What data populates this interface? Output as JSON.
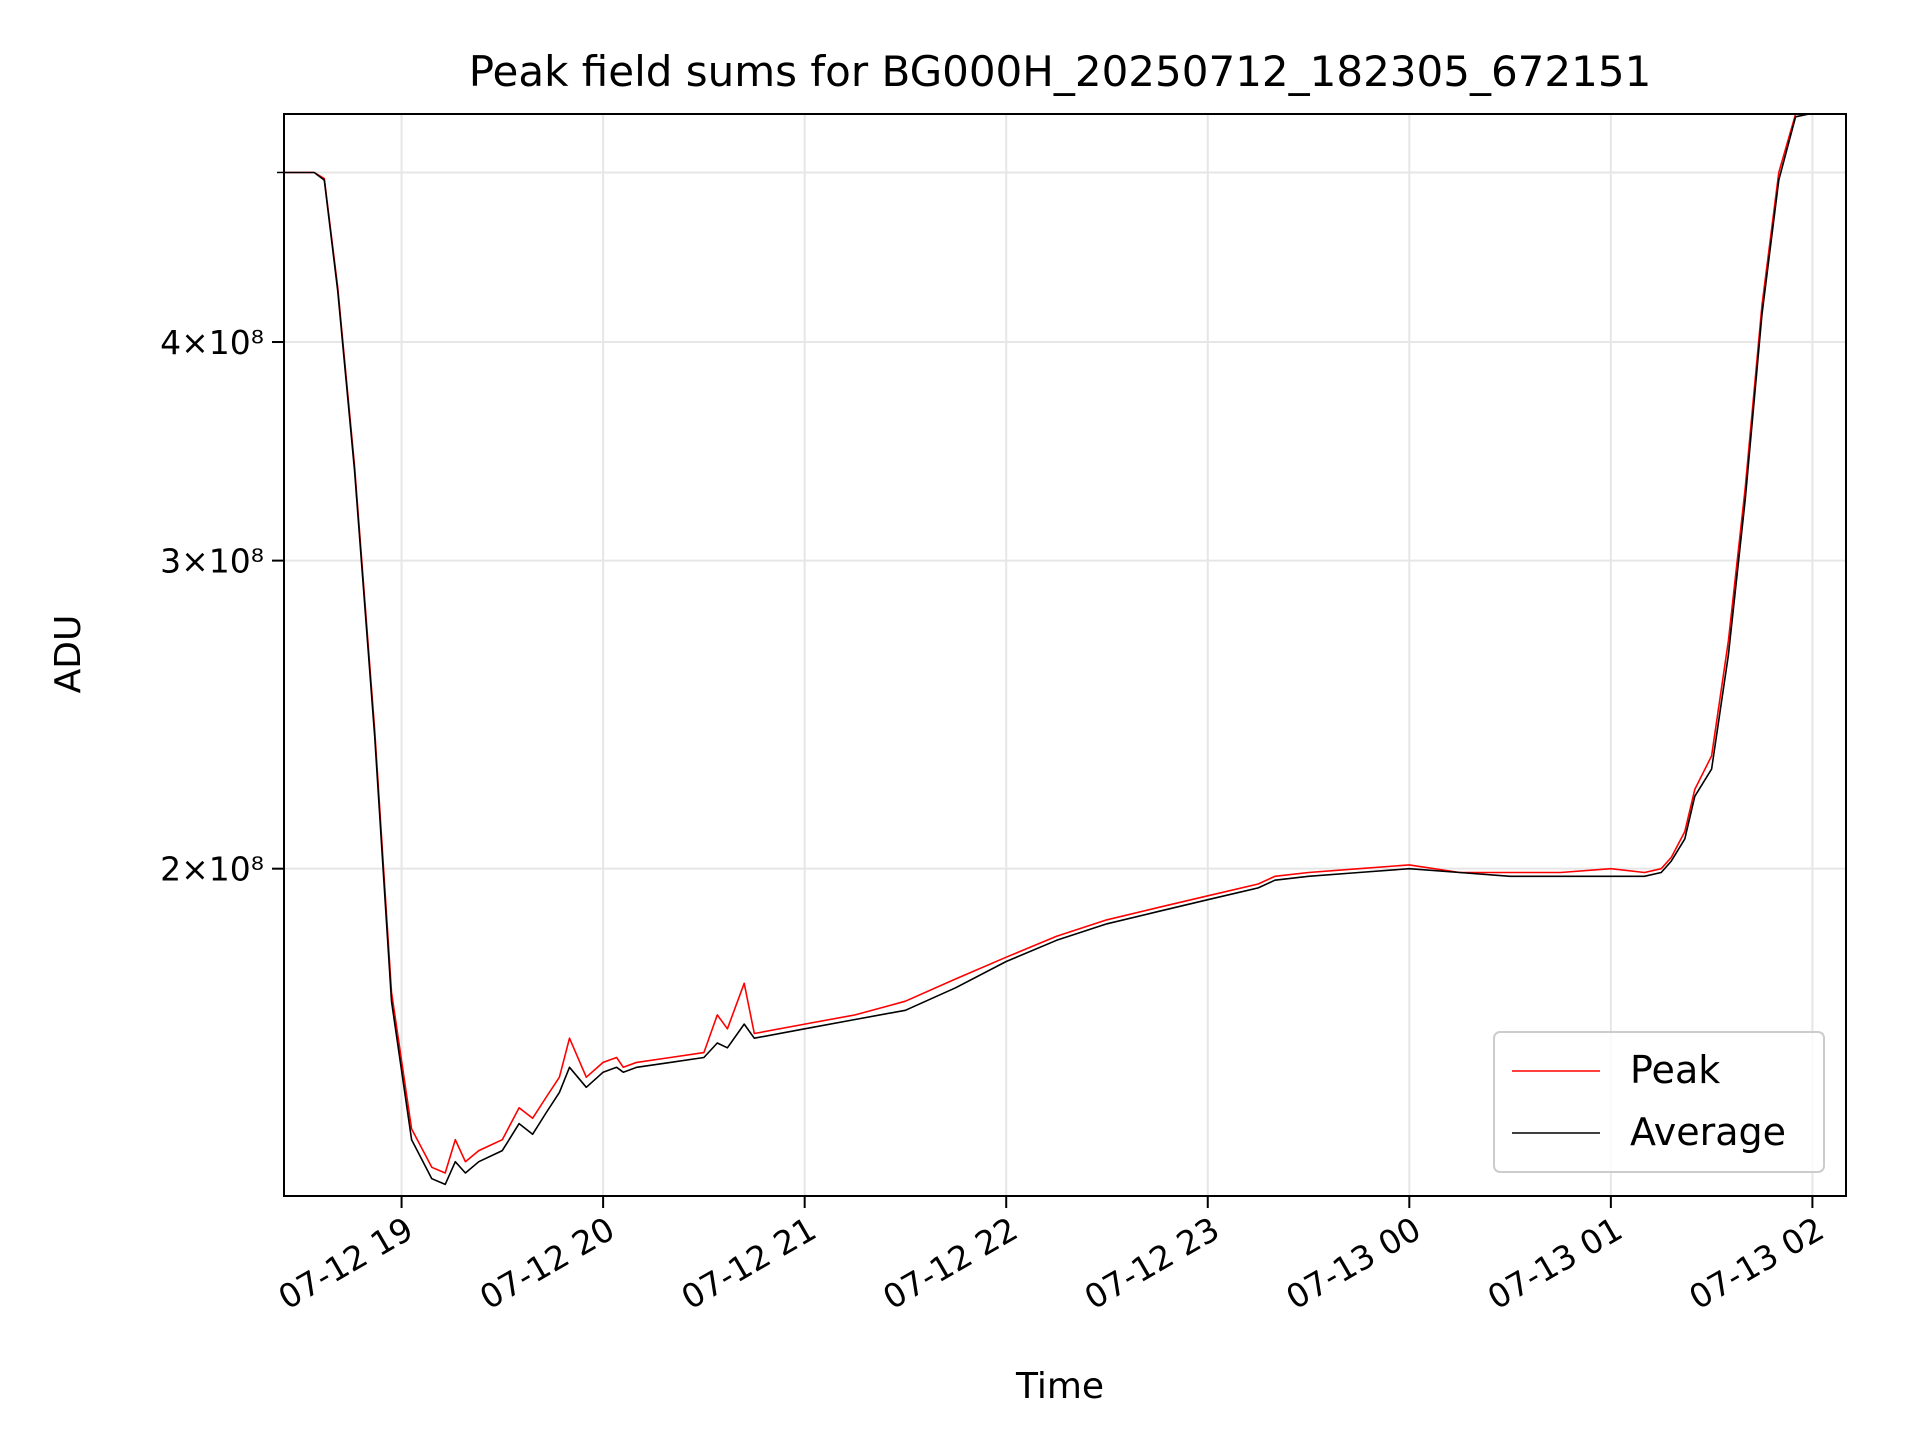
{
  "chart_data": {
    "type": "line",
    "title": "Peak field sums for BG000H_20250712_182305_672151",
    "xlabel": "Time",
    "ylabel": "ADU",
    "xlim": [
      "2025-07-12 18:25",
      "2025-07-13 02:10"
    ],
    "ylim": [
      130000000,
      540000000
    ],
    "yscale": "log",
    "grid": true,
    "legend_position": "bottom-right",
    "x_ticks": [
      {
        "value": "2025-07-12 19:00",
        "label": "07-12 19"
      },
      {
        "value": "2025-07-12 20:00",
        "label": "07-12 20"
      },
      {
        "value": "2025-07-12 21:00",
        "label": "07-12 21"
      },
      {
        "value": "2025-07-12 22:00",
        "label": "07-12 22"
      },
      {
        "value": "2025-07-12 23:00",
        "label": "07-12 23"
      },
      {
        "value": "2025-07-13 00:00",
        "label": "07-13 00"
      },
      {
        "value": "2025-07-13 01:00",
        "label": "07-13 01"
      },
      {
        "value": "2025-07-13 02:00",
        "label": "07-13 02"
      }
    ],
    "y_ticks": [
      {
        "value": 200000000,
        "label": "2×10⁸"
      },
      {
        "value": 300000000,
        "label": "3×10⁸"
      },
      {
        "value": 400000000,
        "label": "4×10⁸"
      }
    ],
    "series": [
      {
        "name": "Peak",
        "color": "#ff0000",
        "x": [
          "2025-07-12 18:25",
          "2025-07-12 18:34",
          "2025-07-12 18:37",
          "2025-07-12 18:41",
          "2025-07-12 18:46",
          "2025-07-12 18:52",
          "2025-07-12 18:57",
          "2025-07-12 19:03",
          "2025-07-12 19:09",
          "2025-07-12 19:13",
          "2025-07-12 19:16",
          "2025-07-12 19:19",
          "2025-07-12 19:23",
          "2025-07-12 19:30",
          "2025-07-12 19:35",
          "2025-07-12 19:39",
          "2025-07-12 19:43",
          "2025-07-12 19:47",
          "2025-07-12 19:50",
          "2025-07-12 19:55",
          "2025-07-12 20:00",
          "2025-07-12 20:04",
          "2025-07-12 20:06",
          "2025-07-12 20:10",
          "2025-07-12 20:20",
          "2025-07-12 20:30",
          "2025-07-12 20:34",
          "2025-07-12 20:37",
          "2025-07-12 20:42",
          "2025-07-12 20:45",
          "2025-07-12 21:00",
          "2025-07-12 21:15",
          "2025-07-12 21:30",
          "2025-07-12 21:45",
          "2025-07-12 22:00",
          "2025-07-12 22:15",
          "2025-07-12 22:30",
          "2025-07-12 22:45",
          "2025-07-12 23:00",
          "2025-07-12 23:15",
          "2025-07-12 23:20",
          "2025-07-12 23:30",
          "2025-07-12 23:45",
          "2025-07-13 00:00",
          "2025-07-13 00:15",
          "2025-07-13 00:30",
          "2025-07-13 00:45",
          "2025-07-13 01:00",
          "2025-07-13 01:10",
          "2025-07-13 01:15",
          "2025-07-13 01:18",
          "2025-07-13 01:22",
          "2025-07-13 01:25",
          "2025-07-13 01:30",
          "2025-07-13 01:35",
          "2025-07-13 01:40",
          "2025-07-13 01:45",
          "2025-07-13 01:50",
          "2025-07-13 01:55",
          "2025-07-13 01:59",
          "2025-07-13 02:10"
        ],
        "y": [
          500000000,
          500000000,
          496000000,
          430000000,
          340000000,
          240000000,
          170000000,
          142000000,
          135000000,
          134000000,
          140000000,
          136000000,
          138000000,
          140000000,
          146000000,
          144000000,
          148000000,
          152000000,
          160000000,
          152000000,
          155000000,
          156000000,
          154000000,
          155000000,
          156000000,
          157000000,
          165000000,
          162000000,
          172000000,
          161000000,
          163000000,
          165000000,
          168000000,
          173000000,
          178000000,
          183000000,
          187000000,
          190000000,
          193000000,
          196000000,
          198000000,
          199000000,
          200000000,
          201000000,
          199000000,
          199000000,
          199000000,
          200000000,
          199000000,
          200000000,
          203000000,
          210000000,
          222000000,
          232000000,
          270000000,
          330000000,
          420000000,
          500000000,
          540000000,
          540000000,
          540000000
        ]
      },
      {
        "name": "Average",
        "color": "#000000",
        "x": [
          "2025-07-12 18:25",
          "2025-07-12 18:34",
          "2025-07-12 18:37",
          "2025-07-12 18:41",
          "2025-07-12 18:46",
          "2025-07-12 18:52",
          "2025-07-12 18:57",
          "2025-07-12 19:03",
          "2025-07-12 19:09",
          "2025-07-12 19:13",
          "2025-07-12 19:16",
          "2025-07-12 19:19",
          "2025-07-12 19:23",
          "2025-07-12 19:30",
          "2025-07-12 19:35",
          "2025-07-12 19:39",
          "2025-07-12 19:43",
          "2025-07-12 19:47",
          "2025-07-12 19:50",
          "2025-07-12 19:55",
          "2025-07-12 20:00",
          "2025-07-12 20:04",
          "2025-07-12 20:06",
          "2025-07-12 20:10",
          "2025-07-12 20:20",
          "2025-07-12 20:30",
          "2025-07-12 20:34",
          "2025-07-12 20:37",
          "2025-07-12 20:42",
          "2025-07-12 20:45",
          "2025-07-12 21:00",
          "2025-07-12 21:15",
          "2025-07-12 21:30",
          "2025-07-12 21:45",
          "2025-07-12 22:00",
          "2025-07-12 22:15",
          "2025-07-12 22:30",
          "2025-07-12 22:45",
          "2025-07-12 23:00",
          "2025-07-12 23:15",
          "2025-07-12 23:20",
          "2025-07-12 23:30",
          "2025-07-12 23:45",
          "2025-07-13 00:00",
          "2025-07-13 00:15",
          "2025-07-13 00:30",
          "2025-07-13 00:45",
          "2025-07-13 01:00",
          "2025-07-13 01:10",
          "2025-07-13 01:15",
          "2025-07-13 01:18",
          "2025-07-13 01:22",
          "2025-07-13 01:25",
          "2025-07-13 01:30",
          "2025-07-13 01:35",
          "2025-07-13 01:40",
          "2025-07-13 01:45",
          "2025-07-13 01:50",
          "2025-07-13 01:55",
          "2025-07-13 01:59",
          "2025-07-13 02:10"
        ],
        "y": [
          500000000,
          500000000,
          495000000,
          428000000,
          338000000,
          238000000,
          168000000,
          140000000,
          133000000,
          132000000,
          136000000,
          134000000,
          136000000,
          138000000,
          143000000,
          141000000,
          145000000,
          149000000,
          154000000,
          150000000,
          153000000,
          154000000,
          153000000,
          154000000,
          155000000,
          156000000,
          159000000,
          158000000,
          163000000,
          160000000,
          162000000,
          164000000,
          166000000,
          171000000,
          177000000,
          182000000,
          186000000,
          189000000,
          192000000,
          195000000,
          197000000,
          198000000,
          199000000,
          200000000,
          199000000,
          198000000,
          198000000,
          198000000,
          198000000,
          199000000,
          202000000,
          208000000,
          220000000,
          228000000,
          265000000,
          325000000,
          415000000,
          495000000,
          538000000,
          540000000,
          540000000
        ]
      }
    ]
  }
}
